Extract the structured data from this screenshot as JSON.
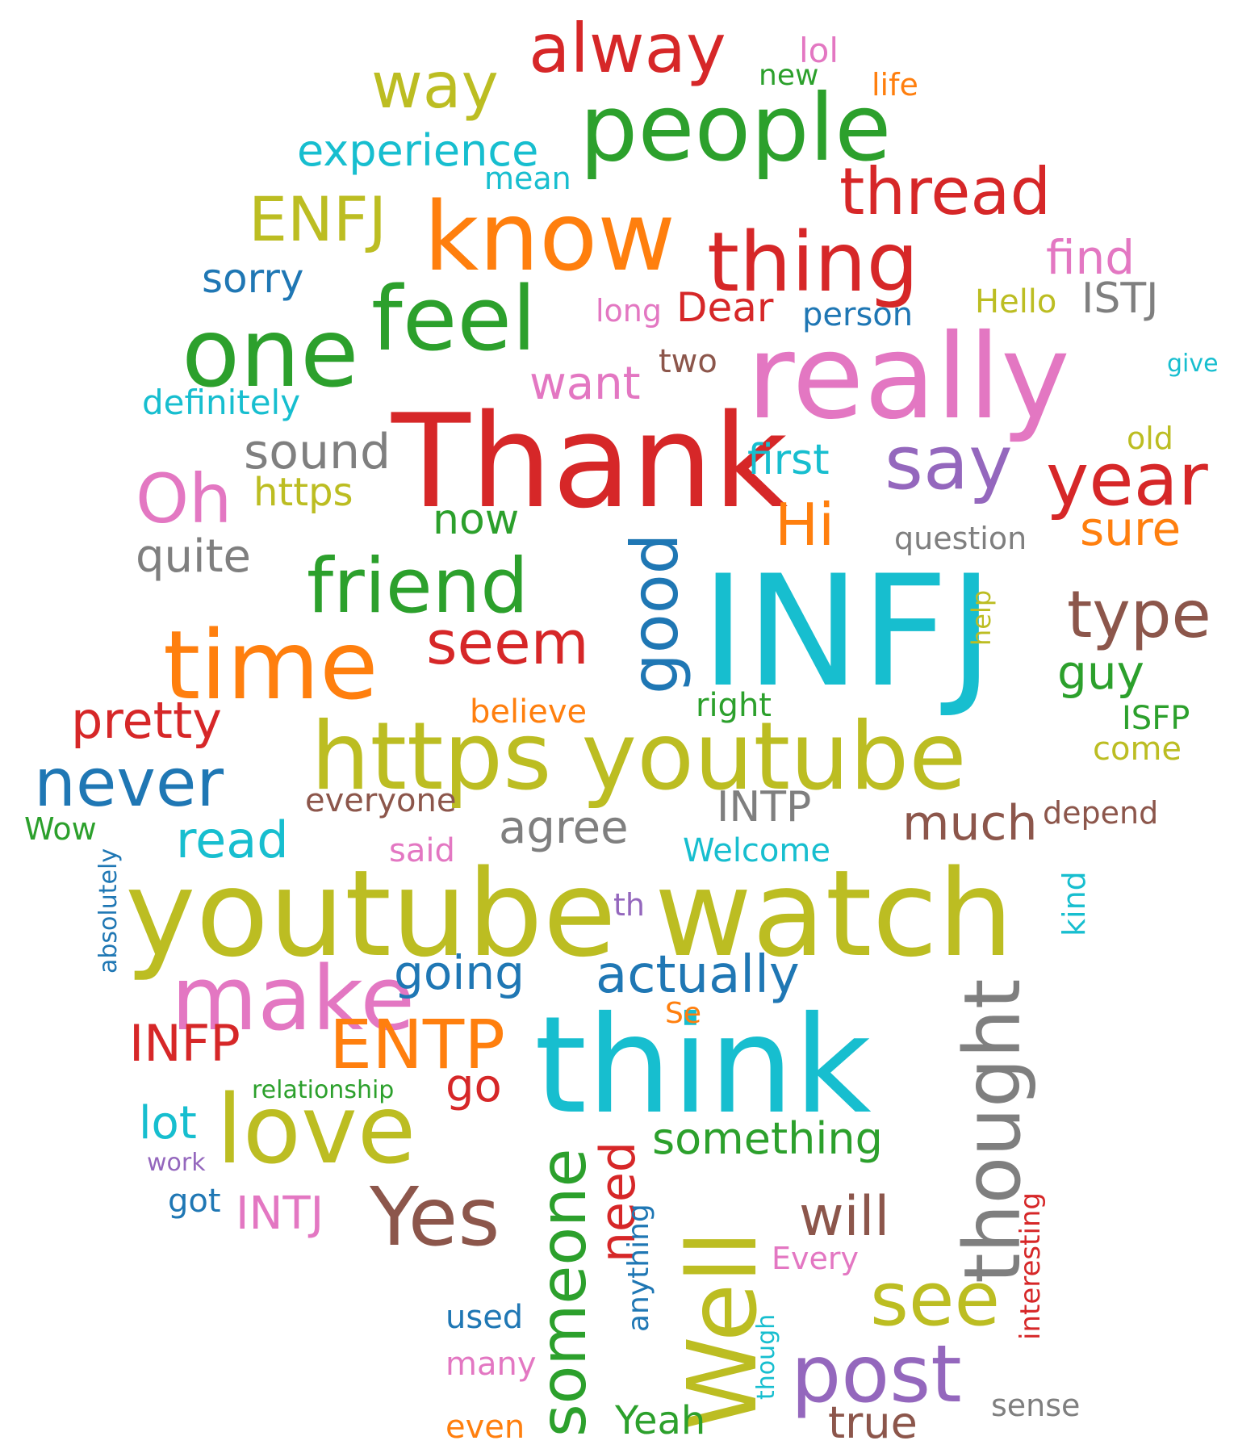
{
  "palette": {
    "blue": "#1f77b4",
    "orange": "#ff7f0e",
    "green": "#2ca02c",
    "red": "#d62728",
    "purple": "#9467bd",
    "brown": "#8c564b",
    "pink": "#e377c2",
    "gray": "#7f7f7f",
    "olive": "#bcbd22",
    "cyan": "#17becf"
  },
  "words": [
    {
      "text": "INFJ",
      "color": "cyan",
      "vertical": false
    },
    {
      "text": "Thank",
      "color": "red",
      "vertical": false
    },
    {
      "text": "youtube watch",
      "color": "olive",
      "vertical": false
    },
    {
      "text": "think",
      "color": "cyan",
      "vertical": false
    },
    {
      "text": "really",
      "color": "pink",
      "vertical": false
    },
    {
      "text": "https youtube",
      "color": "olive",
      "vertical": false
    },
    {
      "text": "people",
      "color": "green",
      "vertical": false
    },
    {
      "text": "know",
      "color": "orange",
      "vertical": false
    },
    {
      "text": "one",
      "color": "green",
      "vertical": false
    },
    {
      "text": "time",
      "color": "orange",
      "vertical": false
    },
    {
      "text": "feel",
      "color": "green",
      "vertical": false
    },
    {
      "text": "thing",
      "color": "red",
      "vertical": false
    },
    {
      "text": "love",
      "color": "olive",
      "vertical": false
    },
    {
      "text": "make",
      "color": "pink",
      "vertical": false
    },
    {
      "text": "Well",
      "color": "olive",
      "vertical": true
    },
    {
      "text": "thought",
      "color": "gray",
      "vertical": true
    },
    {
      "text": "friend",
      "color": "green",
      "vertical": false
    },
    {
      "text": "Yes",
      "color": "brown",
      "vertical": false
    },
    {
      "text": "alway",
      "color": "red",
      "vertical": false
    },
    {
      "text": "post",
      "color": "purple",
      "vertical": false
    },
    {
      "text": "say",
      "color": "purple",
      "vertical": false
    },
    {
      "text": "year",
      "color": "red",
      "vertical": false
    },
    {
      "text": "see",
      "color": "olive",
      "vertical": false
    },
    {
      "text": "good",
      "color": "blue",
      "vertical": true
    },
    {
      "text": "thread",
      "color": "red",
      "vertical": false
    },
    {
      "text": "type",
      "color": "brown",
      "vertical": false
    },
    {
      "text": "someone",
      "color": "green",
      "vertical": true
    },
    {
      "text": "never",
      "color": "blue",
      "vertical": false
    },
    {
      "text": "ENTP",
      "color": "orange",
      "vertical": false
    },
    {
      "text": "way",
      "color": "olive",
      "vertical": false
    },
    {
      "text": "Oh",
      "color": "pink",
      "vertical": false
    },
    {
      "text": "seem",
      "color": "red",
      "vertical": false
    },
    {
      "text": "ENFJ",
      "color": "olive",
      "vertical": false
    },
    {
      "text": "Hi",
      "color": "orange",
      "vertical": false
    },
    {
      "text": "actually",
      "color": "blue",
      "vertical": false
    },
    {
      "text": "will",
      "color": "brown",
      "vertical": false
    },
    {
      "text": "need",
      "color": "red",
      "vertical": true
    },
    {
      "text": "pretty",
      "color": "red",
      "vertical": false
    },
    {
      "text": "experience",
      "color": "cyan",
      "vertical": false
    },
    {
      "text": "sound",
      "color": "gray",
      "vertical": false
    },
    {
      "text": "much",
      "color": "brown",
      "vertical": false
    },
    {
      "text": "INFP",
      "color": "red",
      "vertical": false
    },
    {
      "text": "read",
      "color": "cyan",
      "vertical": false
    },
    {
      "text": "going",
      "color": "blue",
      "vertical": false
    },
    {
      "text": "agree",
      "color": "gray",
      "vertical": false
    },
    {
      "text": "something",
      "color": "green",
      "vertical": false
    },
    {
      "text": "want",
      "color": "pink",
      "vertical": false
    },
    {
      "text": "quite",
      "color": "gray",
      "vertical": false
    },
    {
      "text": "sorry",
      "color": "blue",
      "vertical": false
    },
    {
      "text": "find",
      "color": "pink",
      "vertical": false
    },
    {
      "text": "first",
      "color": "cyan",
      "vertical": false
    },
    {
      "text": "guy",
      "color": "green",
      "vertical": false
    },
    {
      "text": "sure",
      "color": "orange",
      "vertical": false
    },
    {
      "text": "INTJ",
      "color": "pink",
      "vertical": false
    },
    {
      "text": "Dear",
      "color": "red",
      "vertical": false
    },
    {
      "text": "lot",
      "color": "cyan",
      "vertical": false
    },
    {
      "text": "go",
      "color": "red",
      "vertical": false
    },
    {
      "text": "now",
      "color": "green",
      "vertical": false
    },
    {
      "text": "true",
      "color": "brown",
      "vertical": false
    },
    {
      "text": "INTP",
      "color": "gray",
      "vertical": false
    },
    {
      "text": "ISTJ",
      "color": "gray",
      "vertical": false
    },
    {
      "text": "https",
      "color": "olive",
      "vertical": false
    },
    {
      "text": "Yeah",
      "color": "green",
      "vertical": false
    },
    {
      "text": "definitely",
      "color": "cyan",
      "vertical": false
    },
    {
      "text": "anything",
      "color": "blue",
      "vertical": true
    },
    {
      "text": "interesting",
      "color": "red",
      "vertical": true
    },
    {
      "text": "question",
      "color": "gray",
      "vertical": false
    },
    {
      "text": "person",
      "color": "blue",
      "vertical": false
    },
    {
      "text": "Welcome",
      "color": "cyan",
      "vertical": false
    },
    {
      "text": "everyone",
      "color": "brown",
      "vertical": false
    },
    {
      "text": "believe",
      "color": "orange",
      "vertical": false
    },
    {
      "text": "right",
      "color": "green",
      "vertical": false
    },
    {
      "text": "Hello",
      "color": "olive",
      "vertical": false
    },
    {
      "text": "used",
      "color": "blue",
      "vertical": false
    },
    {
      "text": "depend",
      "color": "brown",
      "vertical": false
    },
    {
      "text": "many",
      "color": "pink",
      "vertical": false
    },
    {
      "text": "sense",
      "color": "gray",
      "vertical": false
    },
    {
      "text": "kind",
      "color": "cyan",
      "vertical": true
    },
    {
      "text": "two",
      "color": "brown",
      "vertical": false
    },
    {
      "text": "long",
      "color": "pink",
      "vertical": false
    },
    {
      "text": "Every",
      "color": "pink",
      "vertical": false
    },
    {
      "text": "even",
      "color": "orange",
      "vertical": false
    },
    {
      "text": "ISFP",
      "color": "green",
      "vertical": false
    },
    {
      "text": "come",
      "color": "olive",
      "vertical": false
    },
    {
      "text": "lol",
      "color": "pink",
      "vertical": false
    },
    {
      "text": "mean",
      "color": "cyan",
      "vertical": false
    },
    {
      "text": "life",
      "color": "orange",
      "vertical": false
    },
    {
      "text": "new",
      "color": "green",
      "vertical": false
    },
    {
      "text": "said",
      "color": "pink",
      "vertical": false
    },
    {
      "text": "Wow",
      "color": "green",
      "vertical": false
    },
    {
      "text": "old",
      "color": "olive",
      "vertical": false
    },
    {
      "text": "got",
      "color": "blue",
      "vertical": false
    },
    {
      "text": "th",
      "color": "purple",
      "vertical": false
    },
    {
      "text": "Se",
      "color": "orange",
      "vertical": false
    },
    {
      "text": "relationship",
      "color": "green",
      "vertical": false
    },
    {
      "text": "absolutely",
      "color": "blue",
      "vertical": true
    },
    {
      "text": "help",
      "color": "olive",
      "vertical": true
    },
    {
      "text": "give",
      "color": "cyan",
      "vertical": false
    },
    {
      "text": "though",
      "color": "cyan",
      "vertical": true
    },
    {
      "text": "work",
      "color": "purple",
      "vertical": false
    }
  ]
}
